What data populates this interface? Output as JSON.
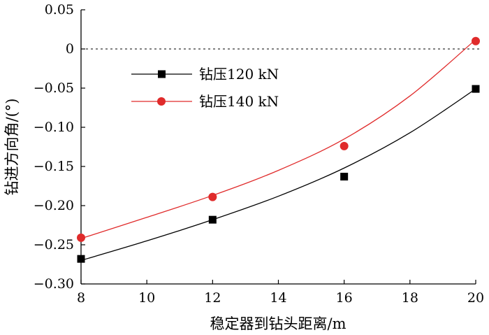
{
  "chart_data": {
    "type": "scatter",
    "xlabel": "稳定器到钻头距离/m",
    "ylabel": "钻进方向角/(°)",
    "xlim": [
      8,
      20
    ],
    "ylim": [
      -0.3,
      0.05
    ],
    "xticks": [
      "8",
      "10",
      "12",
      "14",
      "16",
      "18",
      "20"
    ],
    "yticks": [
      "0.05",
      "0",
      "−0.05",
      "−0.10",
      "−0.15",
      "−0.20",
      "−0.25",
      "−0.30"
    ],
    "grid": false,
    "legend_position": "upper-left",
    "reference_line": {
      "y": 0,
      "style": "dotted"
    },
    "series": [
      {
        "name": "钻压120 kN",
        "marker": "square",
        "color": "#000000",
        "points": {
          "x": [
            8,
            12,
            16,
            20
          ],
          "y": [
            -0.268,
            -0.218,
            -0.163,
            -0.051
          ]
        },
        "fit": {
          "x": [
            8,
            10,
            12,
            14,
            16,
            18,
            20
          ],
          "y": [
            -0.27,
            -0.245,
            -0.218,
            -0.188,
            -0.152,
            -0.107,
            -0.051
          ]
        }
      },
      {
        "name": "钻压140 kN",
        "marker": "circle",
        "color": "#e02b2b",
        "points": {
          "x": [
            8,
            12,
            16,
            20
          ],
          "y": [
            -0.241,
            -0.189,
            -0.124,
            0.01
          ]
        },
        "fit": {
          "x": [
            8,
            10,
            12,
            14,
            16,
            18,
            20
          ],
          "y": [
            -0.242,
            -0.215,
            -0.187,
            -0.155,
            -0.115,
            -0.06,
            0.012
          ]
        }
      }
    ]
  }
}
